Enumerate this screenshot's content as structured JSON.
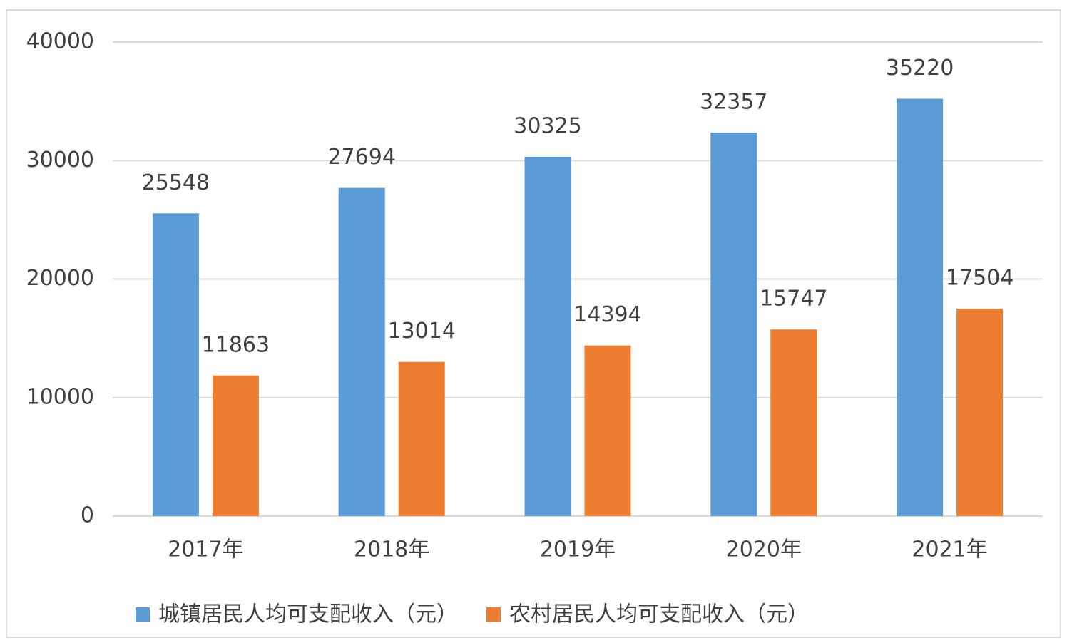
{
  "chart_data": {
    "type": "bar",
    "categories": [
      "2017年",
      "2018年",
      "2019年",
      "2020年",
      "2021年"
    ],
    "series": [
      {
        "name": "城镇居民人均可支配收入（元）",
        "color": "#5b9bd5",
        "values": [
          25548,
          27694,
          30325,
          32357,
          35220
        ]
      },
      {
        "name": "农村居民人均可支配收入（元）",
        "color": "#ed7d31",
        "values": [
          11863,
          13014,
          14394,
          15747,
          17504
        ]
      }
    ],
    "ylim": [
      0,
      40000
    ],
    "yticks": [
      0,
      10000,
      20000,
      30000,
      40000
    ],
    "grid": true,
    "legend": "bottom"
  }
}
